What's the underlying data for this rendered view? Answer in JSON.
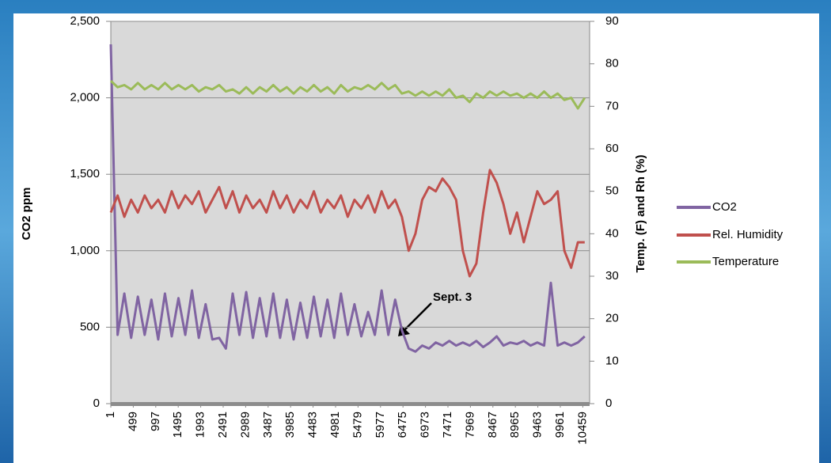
{
  "chart_data": {
    "type": "line",
    "y_label": "CO2 ppm",
    "y2_label": "Temp. (F) and Rh (%)",
    "annotation": "Sept. 3",
    "x": [
      1,
      151,
      301,
      451,
      601,
      751,
      901,
      1051,
      1201,
      1351,
      1501,
      1651,
      1801,
      1951,
      2101,
      2251,
      2401,
      2551,
      2701,
      2851,
      3001,
      3151,
      3301,
      3451,
      3601,
      3751,
      3901,
      4051,
      4201,
      4351,
      4501,
      4651,
      4801,
      4951,
      5101,
      5251,
      5401,
      5551,
      5701,
      5851,
      6001,
      6151,
      6301,
      6451,
      6601,
      6751,
      6901,
      7051,
      7201,
      7351,
      7501,
      7651,
      7801,
      7951,
      8101,
      8251,
      8401,
      8551,
      8701,
      8851,
      9001,
      9151,
      9301,
      9451,
      9601,
      9751,
      9901,
      10051,
      10201,
      10351,
      10501
    ],
    "xlim": [
      1,
      10610
    ],
    "xticks": [
      1,
      499,
      997,
      1495,
      1993,
      2491,
      2989,
      3487,
      3985,
      4483,
      4981,
      5479,
      5977,
      6475,
      6973,
      7471,
      7969,
      8467,
      8965,
      9463,
      9961,
      10459
    ],
    "ylim": [
      0,
      2500
    ],
    "yticks": [
      0,
      500,
      {
        "value": 1000,
        "label": "1,000"
      },
      {
        "value": 1500,
        "label": "1,500"
      },
      {
        "value": 2000,
        "label": "2,000"
      },
      {
        "value": 2500,
        "label": "2,500"
      }
    ],
    "y2lim": [
      0,
      90
    ],
    "y2ticks": [
      0,
      10,
      20,
      30,
      40,
      50,
      60,
      70,
      80,
      90
    ],
    "grid": true,
    "legend": "right",
    "series": [
      {
        "name": "CO2",
        "color": "#8064a2",
        "values": [
          2350,
          450,
          720,
          430,
          700,
          450,
          680,
          420,
          720,
          440,
          690,
          450,
          740,
          430,
          650,
          420,
          430,
          360,
          720,
          450,
          730,
          430,
          690,
          440,
          720,
          430,
          680,
          420,
          660,
          430,
          700,
          440,
          680,
          430,
          720,
          450,
          650,
          440,
          600,
          450,
          740,
          450,
          680,
          480,
          360,
          340,
          380,
          360,
          400,
          380,
          410,
          380,
          400,
          380,
          410,
          370,
          400,
          440,
          380,
          400,
          390,
          410,
          380,
          400,
          380,
          790,
          380,
          400,
          380,
          400,
          440
        ]
      },
      {
        "name": "Rel. Humidity",
        "color": "#c0504d",
        "axis": "y2",
        "values": [
          45,
          49,
          44,
          48,
          45,
          49,
          46,
          48,
          45,
          50,
          46,
          49,
          47,
          50,
          45,
          48,
          51,
          46,
          50,
          45,
          49,
          46,
          48,
          45,
          50,
          46,
          49,
          45,
          48,
          46,
          50,
          45,
          48,
          46,
          49,
          44,
          48,
          46,
          49,
          45,
          50,
          46,
          48,
          44,
          36,
          40,
          48,
          51,
          50,
          53,
          51,
          48,
          36,
          30,
          33,
          45,
          55,
          52,
          47,
          40,
          45,
          38,
          44,
          50,
          47,
          48,
          50,
          36,
          32,
          38,
          38
        ]
      },
      {
        "name": "Temperature",
        "color": "#9bbb59",
        "axis": "y2",
        "values": [
          76,
          74.5,
          75,
          74,
          75.5,
          74,
          75,
          74,
          75.5,
          74,
          75,
          74,
          75,
          73.5,
          74.5,
          74,
          75,
          73.5,
          74,
          73,
          74.5,
          73,
          74.5,
          73.5,
          75,
          73.5,
          74.5,
          73,
          74.5,
          73.5,
          75,
          73.5,
          74.5,
          73,
          75,
          73.5,
          74.5,
          74,
          75,
          74,
          75.5,
          74,
          75,
          73,
          73.5,
          72.5,
          73.5,
          72.5,
          73.5,
          72.5,
          74,
          72,
          72.5,
          71,
          73,
          72,
          73.5,
          72.5,
          73.5,
          72.5,
          73,
          72,
          73,
          72,
          73.5,
          72,
          73,
          71.5,
          72,
          69.5,
          72
        ]
      }
    ]
  }
}
